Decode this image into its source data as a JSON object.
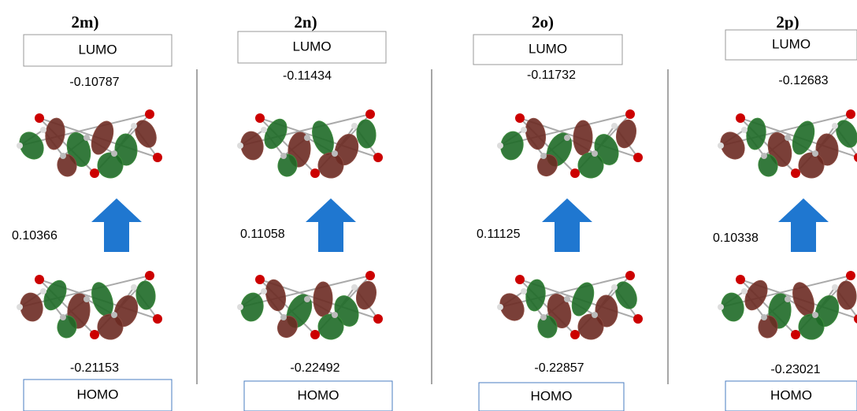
{
  "panels": [
    {
      "label": "2m)",
      "lumo_label": "LUMO",
      "lumo_energy": "-0.10787",
      "gap": "0.10366",
      "homo_energy": "-0.21153",
      "homo_label": "HOMO"
    },
    {
      "label": "2n)",
      "lumo_label": "LUMO",
      "lumo_energy": "-0.11434",
      "gap": "0.11058",
      "homo_energy": "-0.22492",
      "homo_label": "HOMO"
    },
    {
      "label": "2o)",
      "lumo_label": "LUMO",
      "lumo_energy": "-0.11732",
      "gap": "0.11125",
      "homo_energy": "-0.22857",
      "homo_label": "HOMO"
    },
    {
      "label": "2p)",
      "lumo_label": "LUMO",
      "lumo_energy": "-0.12683",
      "gap": "0.10338",
      "homo_energy": "-0.23021",
      "homo_label": "HOMO"
    }
  ]
}
